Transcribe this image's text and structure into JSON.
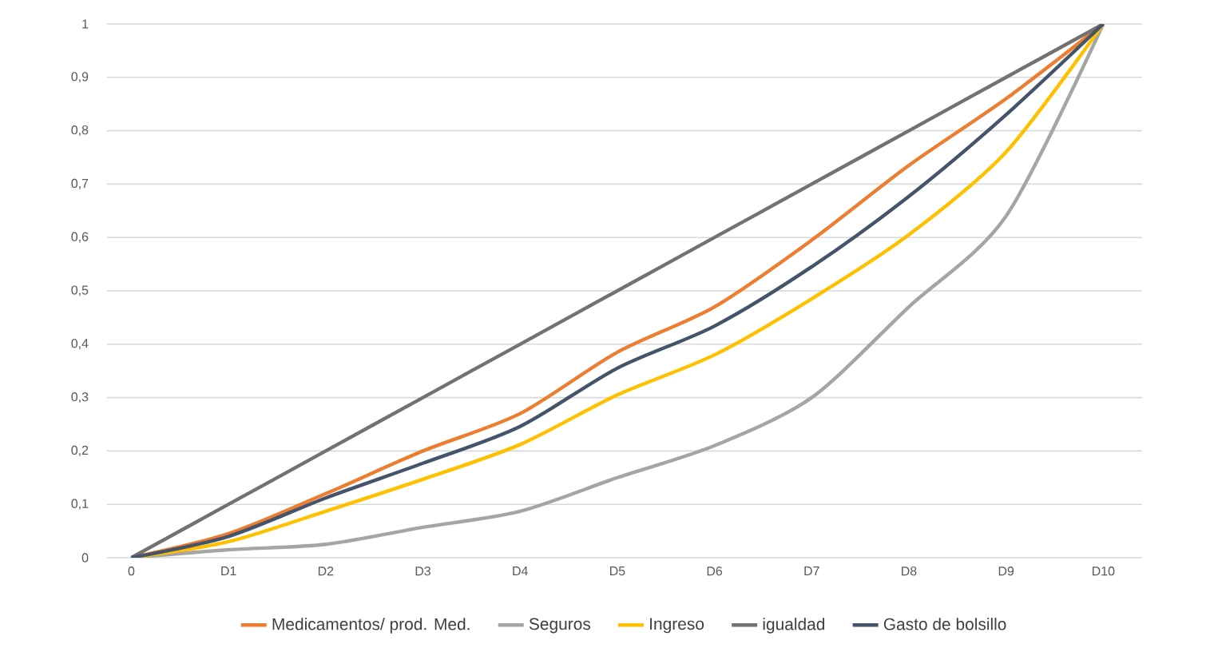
{
  "chart_data": {
    "type": "line",
    "categories": [
      "0",
      "D1",
      "D2",
      "D3",
      "D4",
      "D5",
      "D6",
      "D7",
      "D8",
      "D9",
      "D10"
    ],
    "series": [
      {
        "name": "Medicamentos/ prod. Med.",
        "color": "#ed7d31",
        "values": [
          0,
          0.045,
          0.12,
          0.2,
          0.27,
          0.385,
          0.47,
          0.595,
          0.735,
          0.86,
          1
        ]
      },
      {
        "name": "Seguros",
        "color": "#a5a5a5",
        "values": [
          0,
          0.015,
          0.025,
          0.057,
          0.087,
          0.15,
          0.21,
          0.3,
          0.47,
          0.64,
          1
        ]
      },
      {
        "name": "Ingreso",
        "color": "#ffc000",
        "values": [
          0,
          0.03,
          0.087,
          0.147,
          0.212,
          0.305,
          0.38,
          0.485,
          0.605,
          0.76,
          1
        ]
      },
      {
        "name": "igualdad",
        "color": "#767171",
        "values": [
          0,
          0.1,
          0.2,
          0.3,
          0.4,
          0.5,
          0.6,
          0.7,
          0.8,
          0.9,
          1
        ]
      },
      {
        "name": "Gasto de bolsillo",
        "color": "#44546a",
        "values": [
          0,
          0.04,
          0.112,
          0.177,
          0.246,
          0.355,
          0.434,
          0.545,
          0.677,
          0.83,
          1
        ]
      }
    ],
    "ylim": [
      0,
      1
    ],
    "yticks": [
      0,
      {
        "value": 0.1,
        "label": "0,1"
      },
      {
        "value": 0.2,
        "label": "0,2"
      },
      {
        "value": 0.3,
        "label": "0,3"
      },
      {
        "value": 0.4,
        "label": "0,4"
      },
      {
        "value": 0.5,
        "label": "0,5"
      },
      {
        "value": 0.6,
        "label": "0,6"
      },
      {
        "value": 0.7,
        "label": "0,7"
      },
      {
        "value": 0.8,
        "label": "0,8"
      },
      {
        "value": 0.9,
        "label": "0,9"
      },
      1
    ],
    "grid": "y",
    "legend": "bottom",
    "marker": "none",
    "line_style": "solid"
  }
}
